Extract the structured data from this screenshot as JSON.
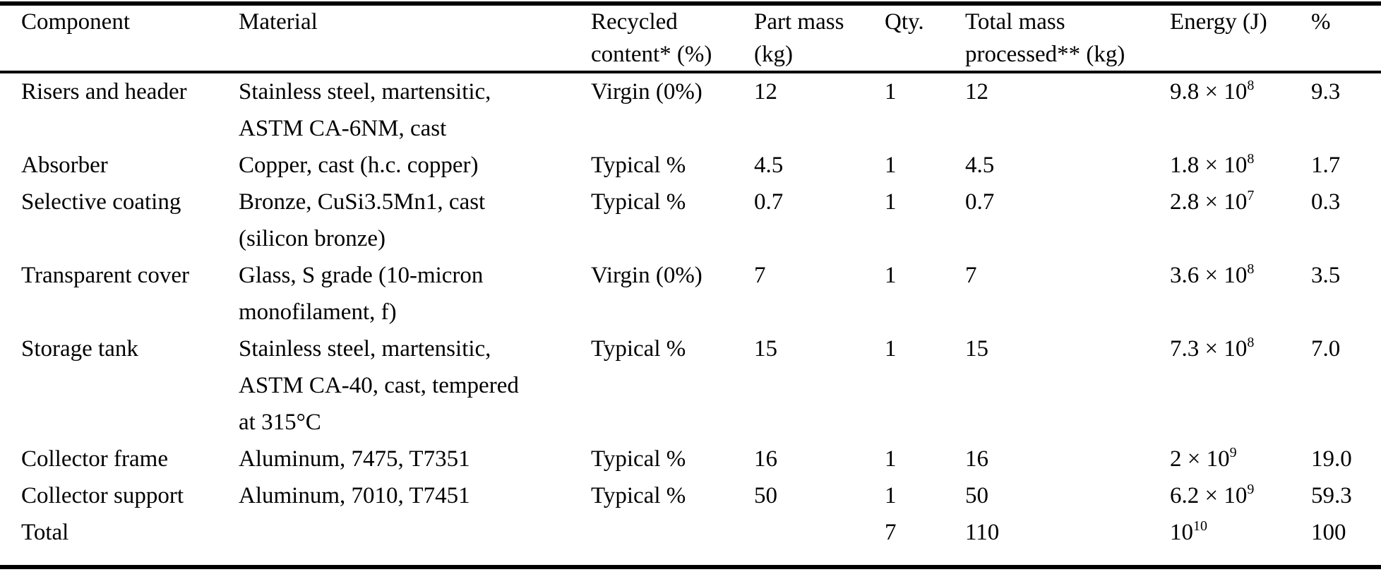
{
  "colors": {
    "text": "#000000",
    "background": "#ffffff",
    "rule": "#000000"
  },
  "table": {
    "columns": [
      {
        "key": "component",
        "label": "Component"
      },
      {
        "key": "material",
        "label": "Material"
      },
      {
        "key": "recycled",
        "label": [
          "Recycled",
          "content* (%)"
        ]
      },
      {
        "key": "part_mass",
        "label": [
          "Part mass",
          "(kg)"
        ]
      },
      {
        "key": "qty",
        "label": "Qty."
      },
      {
        "key": "total_mass",
        "label": [
          "Total mass",
          "processed** (kg)"
        ]
      },
      {
        "key": "energy",
        "label": "Energy (J)"
      },
      {
        "key": "percent",
        "label": "%"
      }
    ],
    "rows": [
      {
        "component": "Risers and header",
        "material": [
          "Stainless steel, martensitic,",
          "ASTM CA-6NM, cast"
        ],
        "recycled": "Virgin (0%)",
        "part_mass": "12",
        "qty": "1",
        "total_mass": "12",
        "energy": {
          "base": "9.8 × 10",
          "sup": "8"
        },
        "percent": "9.3"
      },
      {
        "component": "Absorber",
        "material": "Copper, cast (h.c. copper)",
        "recycled": "Typical %",
        "part_mass": "4.5",
        "qty": "1",
        "total_mass": "4.5",
        "energy": {
          "base": "1.8 × 10",
          "sup": "8"
        },
        "percent": "1.7"
      },
      {
        "component": "Selective coating",
        "material": [
          "Bronze, CuSi3.5Mn1, cast",
          "(silicon bronze)"
        ],
        "recycled": "Typical %",
        "part_mass": "0.7",
        "qty": "1",
        "total_mass": "0.7",
        "energy": {
          "base": "2.8 × 10",
          "sup": "7"
        },
        "percent": "0.3"
      },
      {
        "component": "Transparent cover",
        "material": [
          "Glass, S grade (10-micron",
          "monofilament, f)"
        ],
        "recycled": "Virgin (0%)",
        "part_mass": "7",
        "qty": "1",
        "total_mass": "7",
        "energy": {
          "base": "3.6 × 10",
          "sup": "8"
        },
        "percent": "3.5"
      },
      {
        "component": "Storage tank",
        "material": [
          "Stainless steel, martensitic,",
          "ASTM CA-40, cast, tempered",
          "at 315°C"
        ],
        "recycled": "Typical %",
        "part_mass": "15",
        "qty": "1",
        "total_mass": "15",
        "energy": {
          "base": "7.3 × 10",
          "sup": "8"
        },
        "percent": "7.0"
      },
      {
        "component": "Collector frame",
        "material": "Aluminum, 7475, T7351",
        "recycled": "Typical %",
        "part_mass": "16",
        "qty": "1",
        "total_mass": "16",
        "energy": {
          "base": "2 × 10",
          "sup": "9"
        },
        "percent": "19.0"
      },
      {
        "component": "Collector support",
        "material": "Aluminum, 7010, T7451",
        "recycled": "Typical %",
        "part_mass": "50",
        "qty": "1",
        "total_mass": "50",
        "energy": {
          "base": "6.2 × 10",
          "sup": "9"
        },
        "percent": "59.3"
      },
      {
        "component": "Total",
        "material": "",
        "recycled": "",
        "part_mass": "",
        "qty": "7",
        "total_mass": "110",
        "energy": {
          "base": "10",
          "sup": "10"
        },
        "percent": "100"
      }
    ]
  }
}
